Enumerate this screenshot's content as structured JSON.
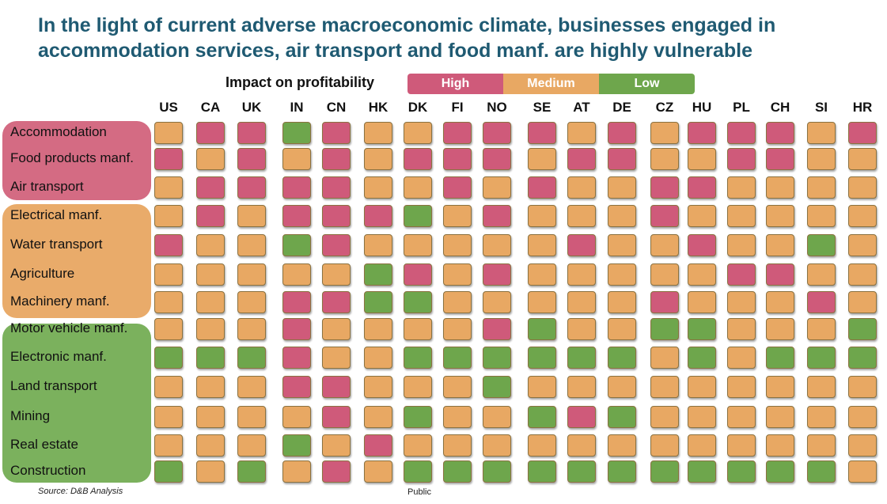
{
  "title": "In the light of current adverse macroeconomic climate, businesses engaged in accommodation services, air transport and food manf. are highly vulnerable",
  "source": "Source: D&B Analysis",
  "footer_label": "Public",
  "colors": {
    "High": "#cf5a7a",
    "Medium": "#e8a863",
    "Low": "#6ea64c",
    "group_high": "#d46b83",
    "group_medium": "#e9ab6a",
    "group_low": "#7bb15d"
  },
  "chart_data": {
    "type": "heatmap",
    "title": "In the light of current adverse macroeconomic climate, businesses engaged in accommodation services, air transport and food manf. are highly vulnerable",
    "legend": {
      "title": "Impact on profitability",
      "entries": [
        "High",
        "Medium",
        "Low"
      ],
      "placement": "top"
    },
    "columns": [
      "US",
      "CA",
      "UK",
      "IN",
      "CN",
      "HK",
      "DK",
      "FI",
      "NO",
      "SE",
      "AT",
      "DE",
      "CZ",
      "HU",
      "PL",
      "CH",
      "SI",
      "HR"
    ],
    "groups": [
      {
        "level": "High",
        "rows": [
          "Accommodation",
          "Food products manf.",
          "Air transport"
        ]
      },
      {
        "level": "Medium",
        "rows": [
          "Electrical manf.",
          "Water transport",
          "Agriculture",
          "Machinery manf."
        ]
      },
      {
        "level": "Low",
        "rows": [
          "Motor vehicle manf.",
          "Electronic manf.",
          "Land transport",
          "Mining",
          "Real estate",
          "Construction"
        ]
      }
    ],
    "rows": [
      {
        "name": "Accommodation",
        "values": [
          "M",
          "H",
          "H",
          "L",
          "H",
          "M",
          "M",
          "H",
          "H",
          "H",
          "M",
          "H",
          "M",
          "H",
          "H",
          "H",
          "M",
          "H"
        ]
      },
      {
        "name": "Food products manf.",
        "values": [
          "H",
          "M",
          "H",
          "M",
          "H",
          "M",
          "H",
          "H",
          "H",
          "M",
          "H",
          "H",
          "M",
          "M",
          "H",
          "H",
          "M",
          "M"
        ]
      },
      {
        "name": "Air transport",
        "values": [
          "M",
          "H",
          "H",
          "H",
          "H",
          "M",
          "M",
          "H",
          "M",
          "H",
          "M",
          "M",
          "H",
          "H",
          "M",
          "M",
          "M",
          "M"
        ]
      },
      {
        "name": "Electrical manf.",
        "values": [
          "M",
          "H",
          "M",
          "H",
          "H",
          "H",
          "L",
          "M",
          "H",
          "M",
          "M",
          "M",
          "H",
          "M",
          "M",
          "M",
          "M",
          "M"
        ]
      },
      {
        "name": "Water transport",
        "values": [
          "H",
          "M",
          "M",
          "L",
          "H",
          "M",
          "M",
          "M",
          "M",
          "M",
          "H",
          "M",
          "M",
          "H",
          "M",
          "M",
          "L",
          "M"
        ]
      },
      {
        "name": "Agriculture",
        "values": [
          "M",
          "M",
          "M",
          "M",
          "M",
          "L",
          "H",
          "M",
          "H",
          "M",
          "M",
          "M",
          "M",
          "M",
          "H",
          "H",
          "M",
          "M"
        ]
      },
      {
        "name": "Machinery manf.",
        "values": [
          "M",
          "M",
          "M",
          "H",
          "H",
          "L",
          "L",
          "M",
          "M",
          "M",
          "M",
          "M",
          "H",
          "M",
          "M",
          "M",
          "H",
          "M"
        ]
      },
      {
        "name": "Motor vehicle manf.",
        "values": [
          "M",
          "M",
          "M",
          "H",
          "M",
          "M",
          "M",
          "M",
          "H",
          "L",
          "M",
          "M",
          "L",
          "L",
          "M",
          "M",
          "M",
          "L"
        ]
      },
      {
        "name": "Electronic manf.",
        "values": [
          "L",
          "L",
          "L",
          "H",
          "M",
          "M",
          "L",
          "L",
          "L",
          "L",
          "L",
          "L",
          "M",
          "L",
          "M",
          "L",
          "L",
          "L"
        ]
      },
      {
        "name": "Land transport",
        "values": [
          "M",
          "M",
          "M",
          "H",
          "H",
          "M",
          "M",
          "M",
          "L",
          "M",
          "M",
          "M",
          "M",
          "M",
          "M",
          "M",
          "M",
          "M"
        ]
      },
      {
        "name": "Mining",
        "values": [
          "M",
          "M",
          "M",
          "M",
          "H",
          "M",
          "L",
          "M",
          "M",
          "L",
          "H",
          "L",
          "M",
          "M",
          "M",
          "M",
          "M",
          "M"
        ]
      },
      {
        "name": "Real estate",
        "values": [
          "M",
          "M",
          "M",
          "L",
          "M",
          "H",
          "M",
          "M",
          "M",
          "M",
          "M",
          "M",
          "M",
          "M",
          "M",
          "M",
          "M",
          "M"
        ]
      },
      {
        "name": "Construction",
        "values": [
          "L",
          "M",
          "L",
          "M",
          "H",
          "M",
          "L",
          "L",
          "L",
          "L",
          "L",
          "L",
          "L",
          "L",
          "L",
          "L",
          "L",
          "M"
        ]
      }
    ]
  }
}
